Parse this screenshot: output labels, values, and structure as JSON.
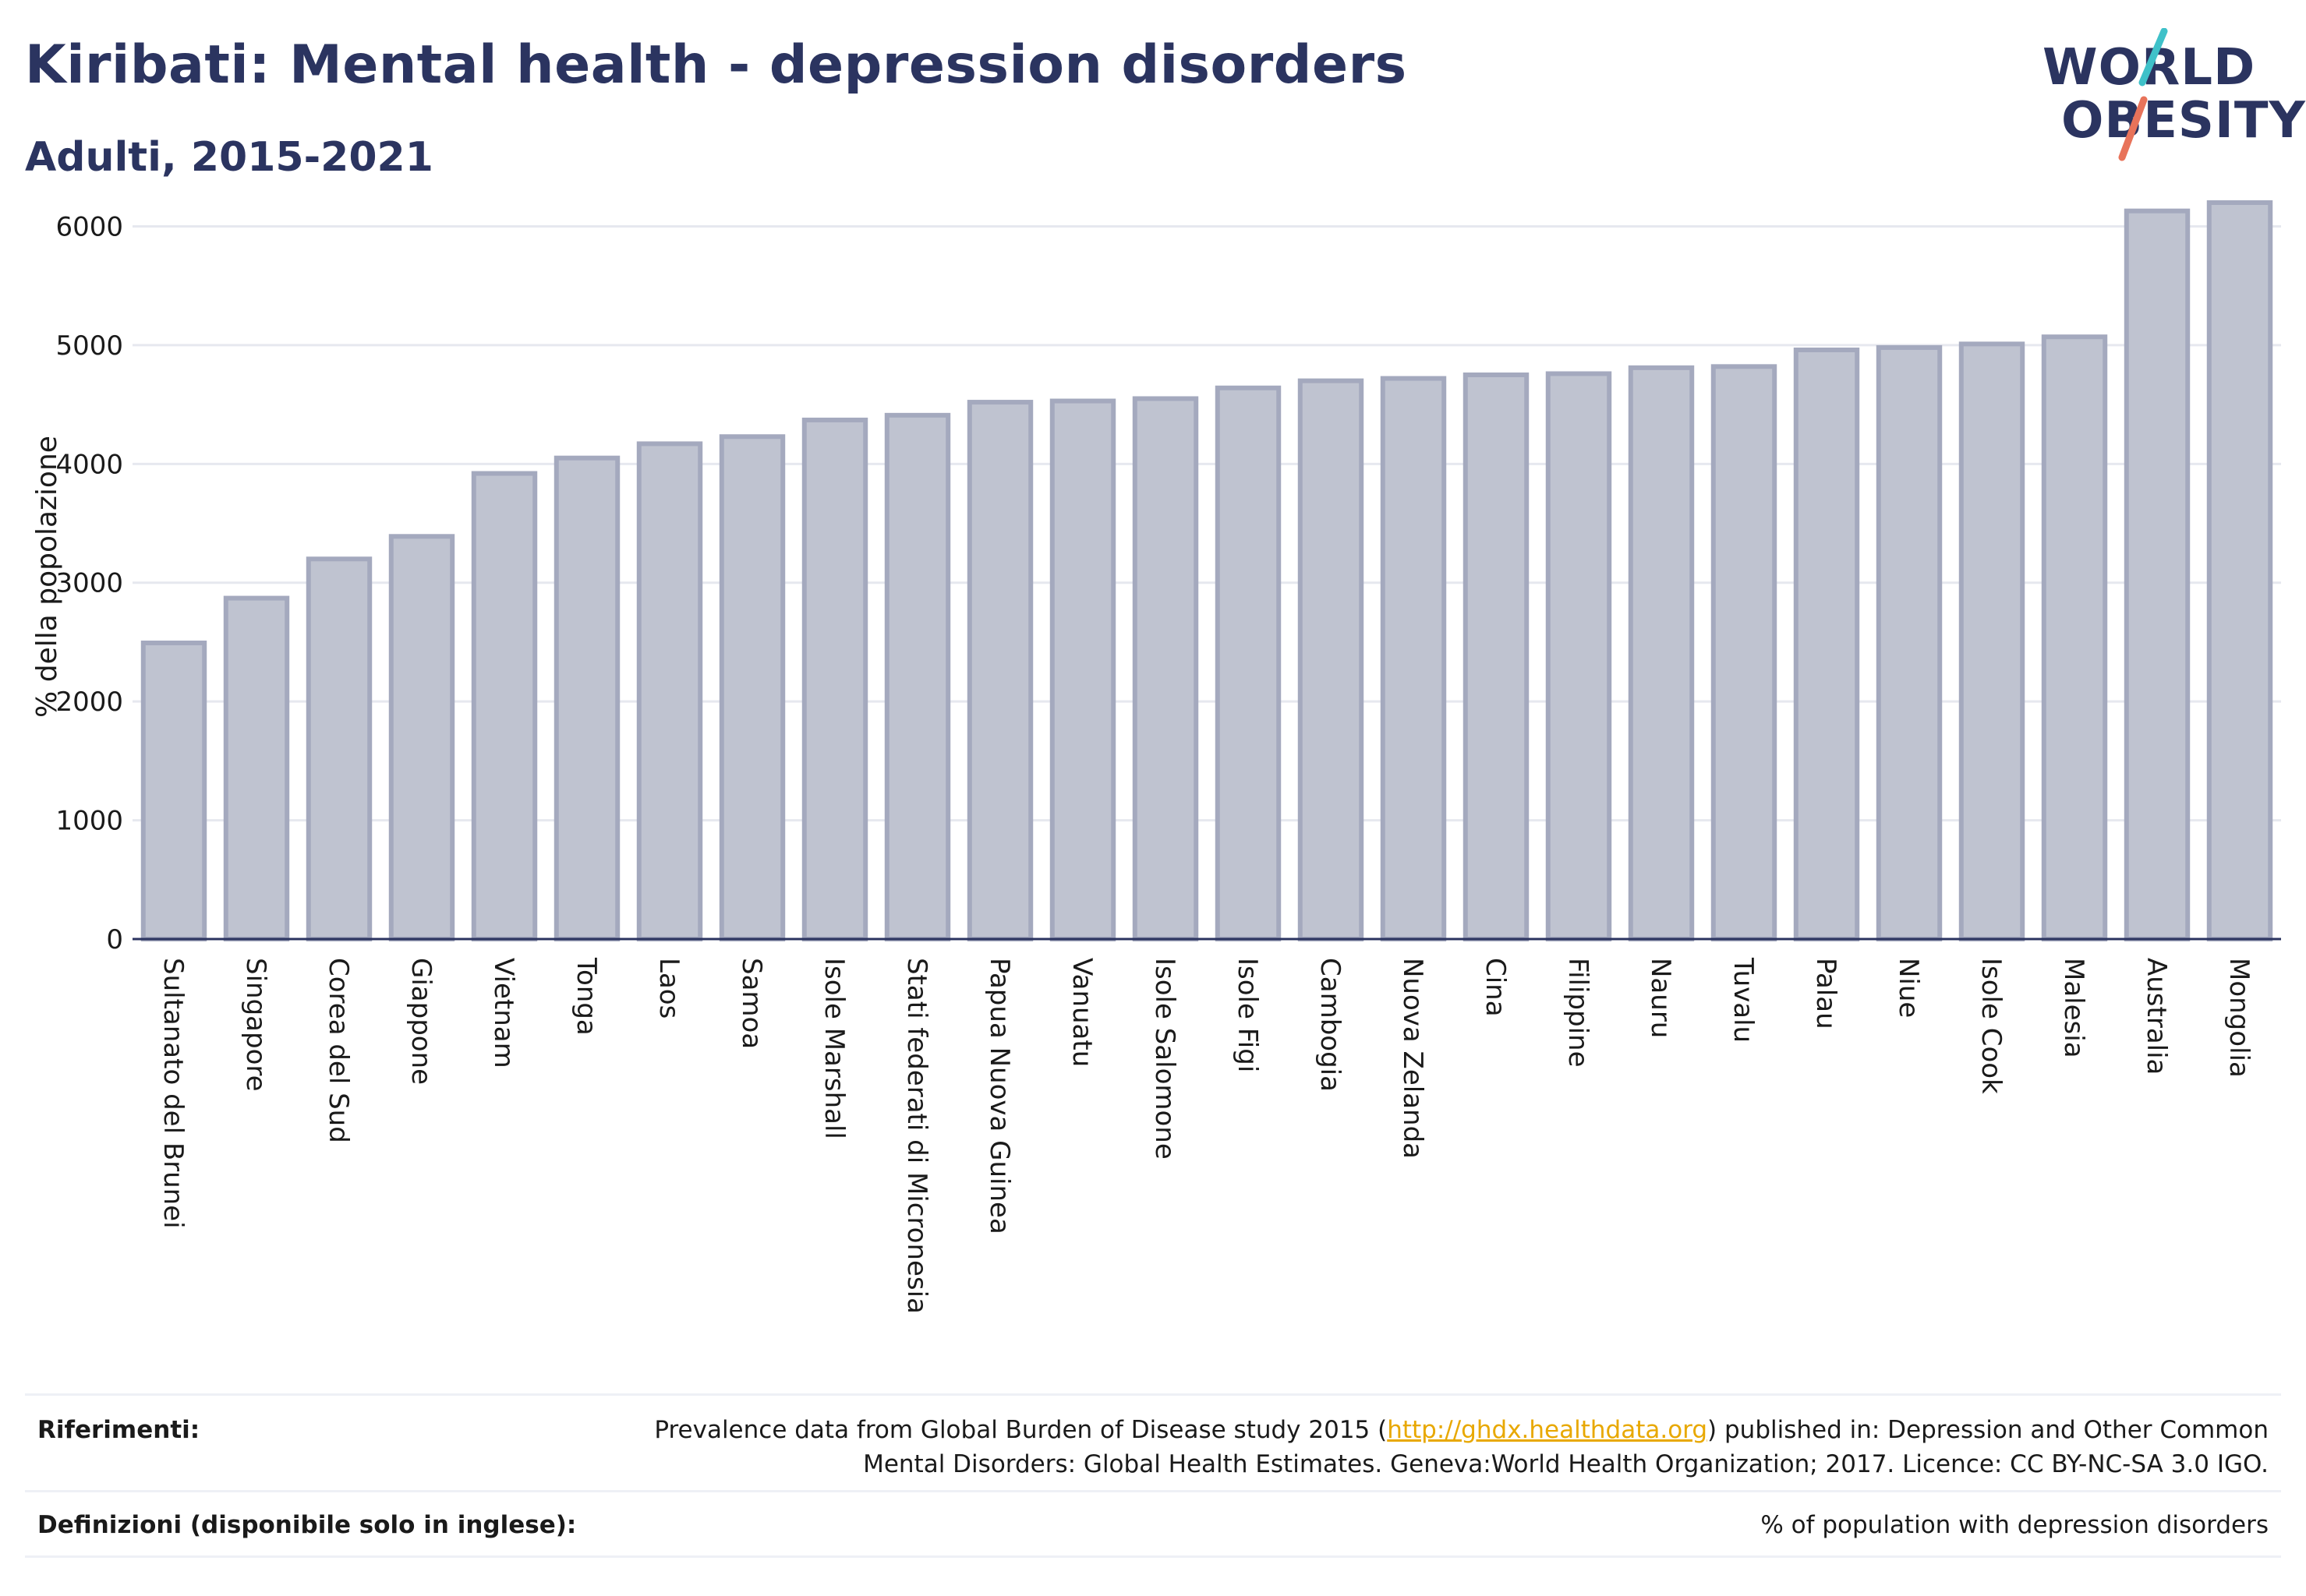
{
  "header": {
    "title": "Kiribati: Mental health - depression disorders",
    "subtitle": "Adulti, 2015-2021"
  },
  "logo": {
    "line1": "WORLD",
    "line2": "OBESITY",
    "slash_colors": [
      "#3fc1c9",
      "#e8735a"
    ]
  },
  "chart_data": {
    "type": "bar",
    "title": "",
    "xlabel": "",
    "ylabel": "% della popolazione",
    "ylim": [
      0,
      6200
    ],
    "yticks": [
      0,
      1000,
      2000,
      3000,
      4000,
      5000,
      6000
    ],
    "grid": true,
    "bar_color": "#bfc3d0",
    "bar_edge_color": "#a4a9be",
    "categories": [
      "Sultanato del Brunei",
      "Singapore",
      "Corea del Sud",
      "Giappone",
      "Vietnam",
      "Tonga",
      "Laos",
      "Samoa",
      "Isole Marshall",
      "Stati federati di Micronesia",
      "Papua Nuova Guinea",
      "Vanuatu",
      "Isole Salomone",
      "Isole Figi",
      "Cambogia",
      "Nuova Zelanda",
      "Cina",
      "Filippine",
      "Nauru",
      "Tuvalu",
      "Palau",
      "Niue",
      "Isole Cook",
      "Malesia",
      "Australia",
      "Mongolia"
    ],
    "values": [
      2493,
      2870,
      3200,
      3390,
      3920,
      4050,
      4170,
      4230,
      4370,
      4410,
      4520,
      4530,
      4550,
      4640,
      4700,
      4720,
      4750,
      4760,
      4810,
      4820,
      4960,
      4980,
      5010,
      5070,
      6130,
      6200
    ]
  },
  "references": {
    "label": "Riferimenti:",
    "line1_pre": "Prevalence data from Global Burden of Disease study 2015 (",
    "link": "http://ghdx.healthdata.org",
    "line1_post": ") published in: Depression and Other Common",
    "line2": "Mental Disorders: Global Health Estimates. Geneva:World Health Organization; 2017. Licence: CC BY-NC-SA 3.0 IGO."
  },
  "definitions": {
    "label": "Definizioni (disponibile solo in inglese):",
    "text": "% of population with depression disorders"
  }
}
